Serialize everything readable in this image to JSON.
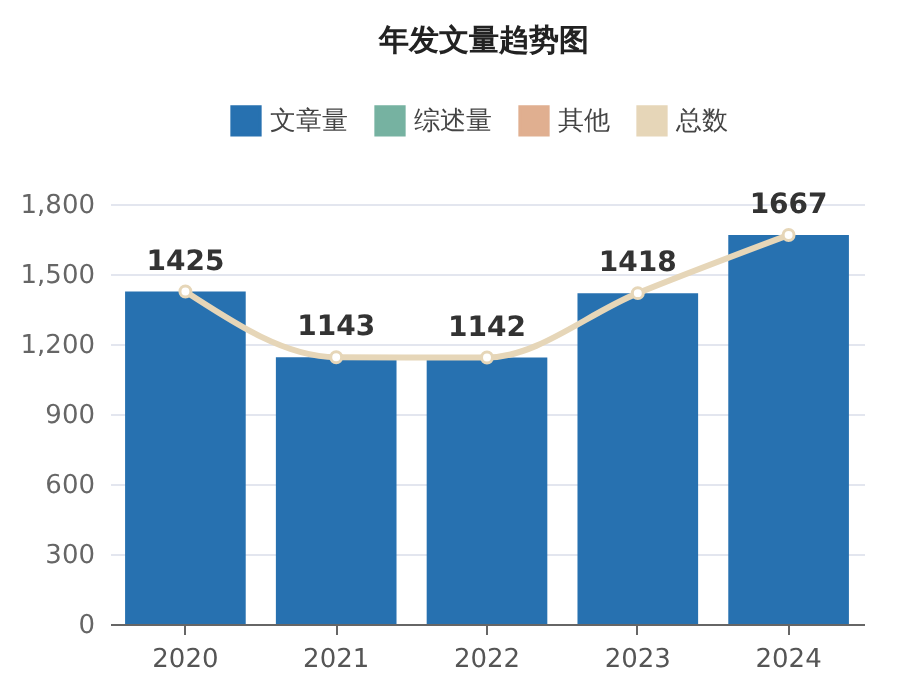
{
  "chart_data": {
    "type": "bar",
    "title": "年发文量趋势图",
    "stacked": true,
    "categories": [
      "2020",
      "2021",
      "2022",
      "2023",
      "2024"
    ],
    "series": [
      {
        "name": "文章量",
        "color": "#2771b0",
        "values": [
          1425,
          1143,
          1142,
          1418,
          1667
        ]
      },
      {
        "name": "综述量",
        "color": "#76b2a1",
        "values": [
          0,
          0,
          0,
          0,
          0
        ]
      },
      {
        "name": "其他",
        "color": "#e0af90",
        "values": [
          0,
          0,
          0,
          0,
          0
        ]
      },
      {
        "name": "总数",
        "type": "line",
        "color": "#e6d6b8",
        "values": [
          1425,
          1143,
          1142,
          1418,
          1667
        ],
        "data_labels": true
      }
    ],
    "ylim": [
      0,
      1800
    ],
    "yticks": [
      0,
      300,
      600,
      900,
      {
        "value": 1200,
        "label": "1,200"
      },
      {
        "value": 1500,
        "label": "1,500"
      },
      {
        "value": 1800,
        "label": "1,800"
      }
    ],
    "grid": "y",
    "legend": "top",
    "marker": "circle",
    "line_style": "solid"
  }
}
